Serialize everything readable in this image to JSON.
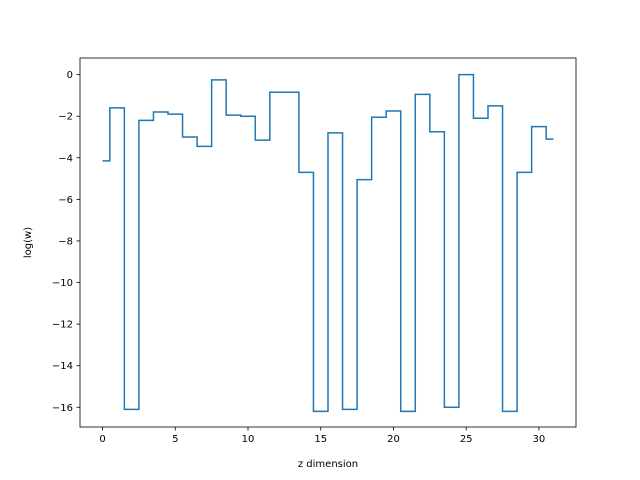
{
  "chart_data": {
    "type": "line",
    "drawstyle": "steps-mid",
    "title": "",
    "xlabel": "z dimension",
    "ylabel": "log(w)",
    "xlim": [
      -1.55,
      32.55
    ],
    "ylim": [
      -16.95,
      0.8
    ],
    "xticks": [
      0,
      5,
      10,
      15,
      20,
      25,
      30
    ],
    "xtick_labels": [
      "0",
      "5",
      "10",
      "15",
      "20",
      "25",
      "30"
    ],
    "yticks": [
      0,
      -2,
      -4,
      -6,
      -8,
      -10,
      -12,
      -14,
      -16
    ],
    "ytick_labels": [
      "0",
      "−2",
      "−4",
      "−6",
      "−8",
      "−10",
      "−12",
      "−14",
      "−16"
    ],
    "grid": false,
    "legend": false,
    "color": "#1f77b4",
    "series": [
      {
        "x": [
          0,
          1,
          2,
          3,
          4,
          5,
          6,
          7,
          8,
          9,
          10,
          11,
          12,
          13,
          14,
          15,
          16,
          17,
          18,
          19,
          20,
          21,
          22,
          23,
          24,
          25,
          26,
          27,
          28,
          29,
          30,
          31
        ],
        "values": [
          -4.15,
          -1.6,
          -16.1,
          -2.2,
          -1.8,
          -1.9,
          -3.0,
          -3.45,
          -0.25,
          -1.95,
          -2.0,
          -3.15,
          -0.85,
          -0.85,
          -4.7,
          -16.2,
          -2.8,
          -16.1,
          -5.05,
          -2.05,
          -1.75,
          -16.2,
          -0.95,
          -2.75,
          -16.0,
          0.0,
          -2.1,
          -1.5,
          -16.2,
          -4.7,
          -2.5,
          -3.1
        ]
      }
    ]
  }
}
